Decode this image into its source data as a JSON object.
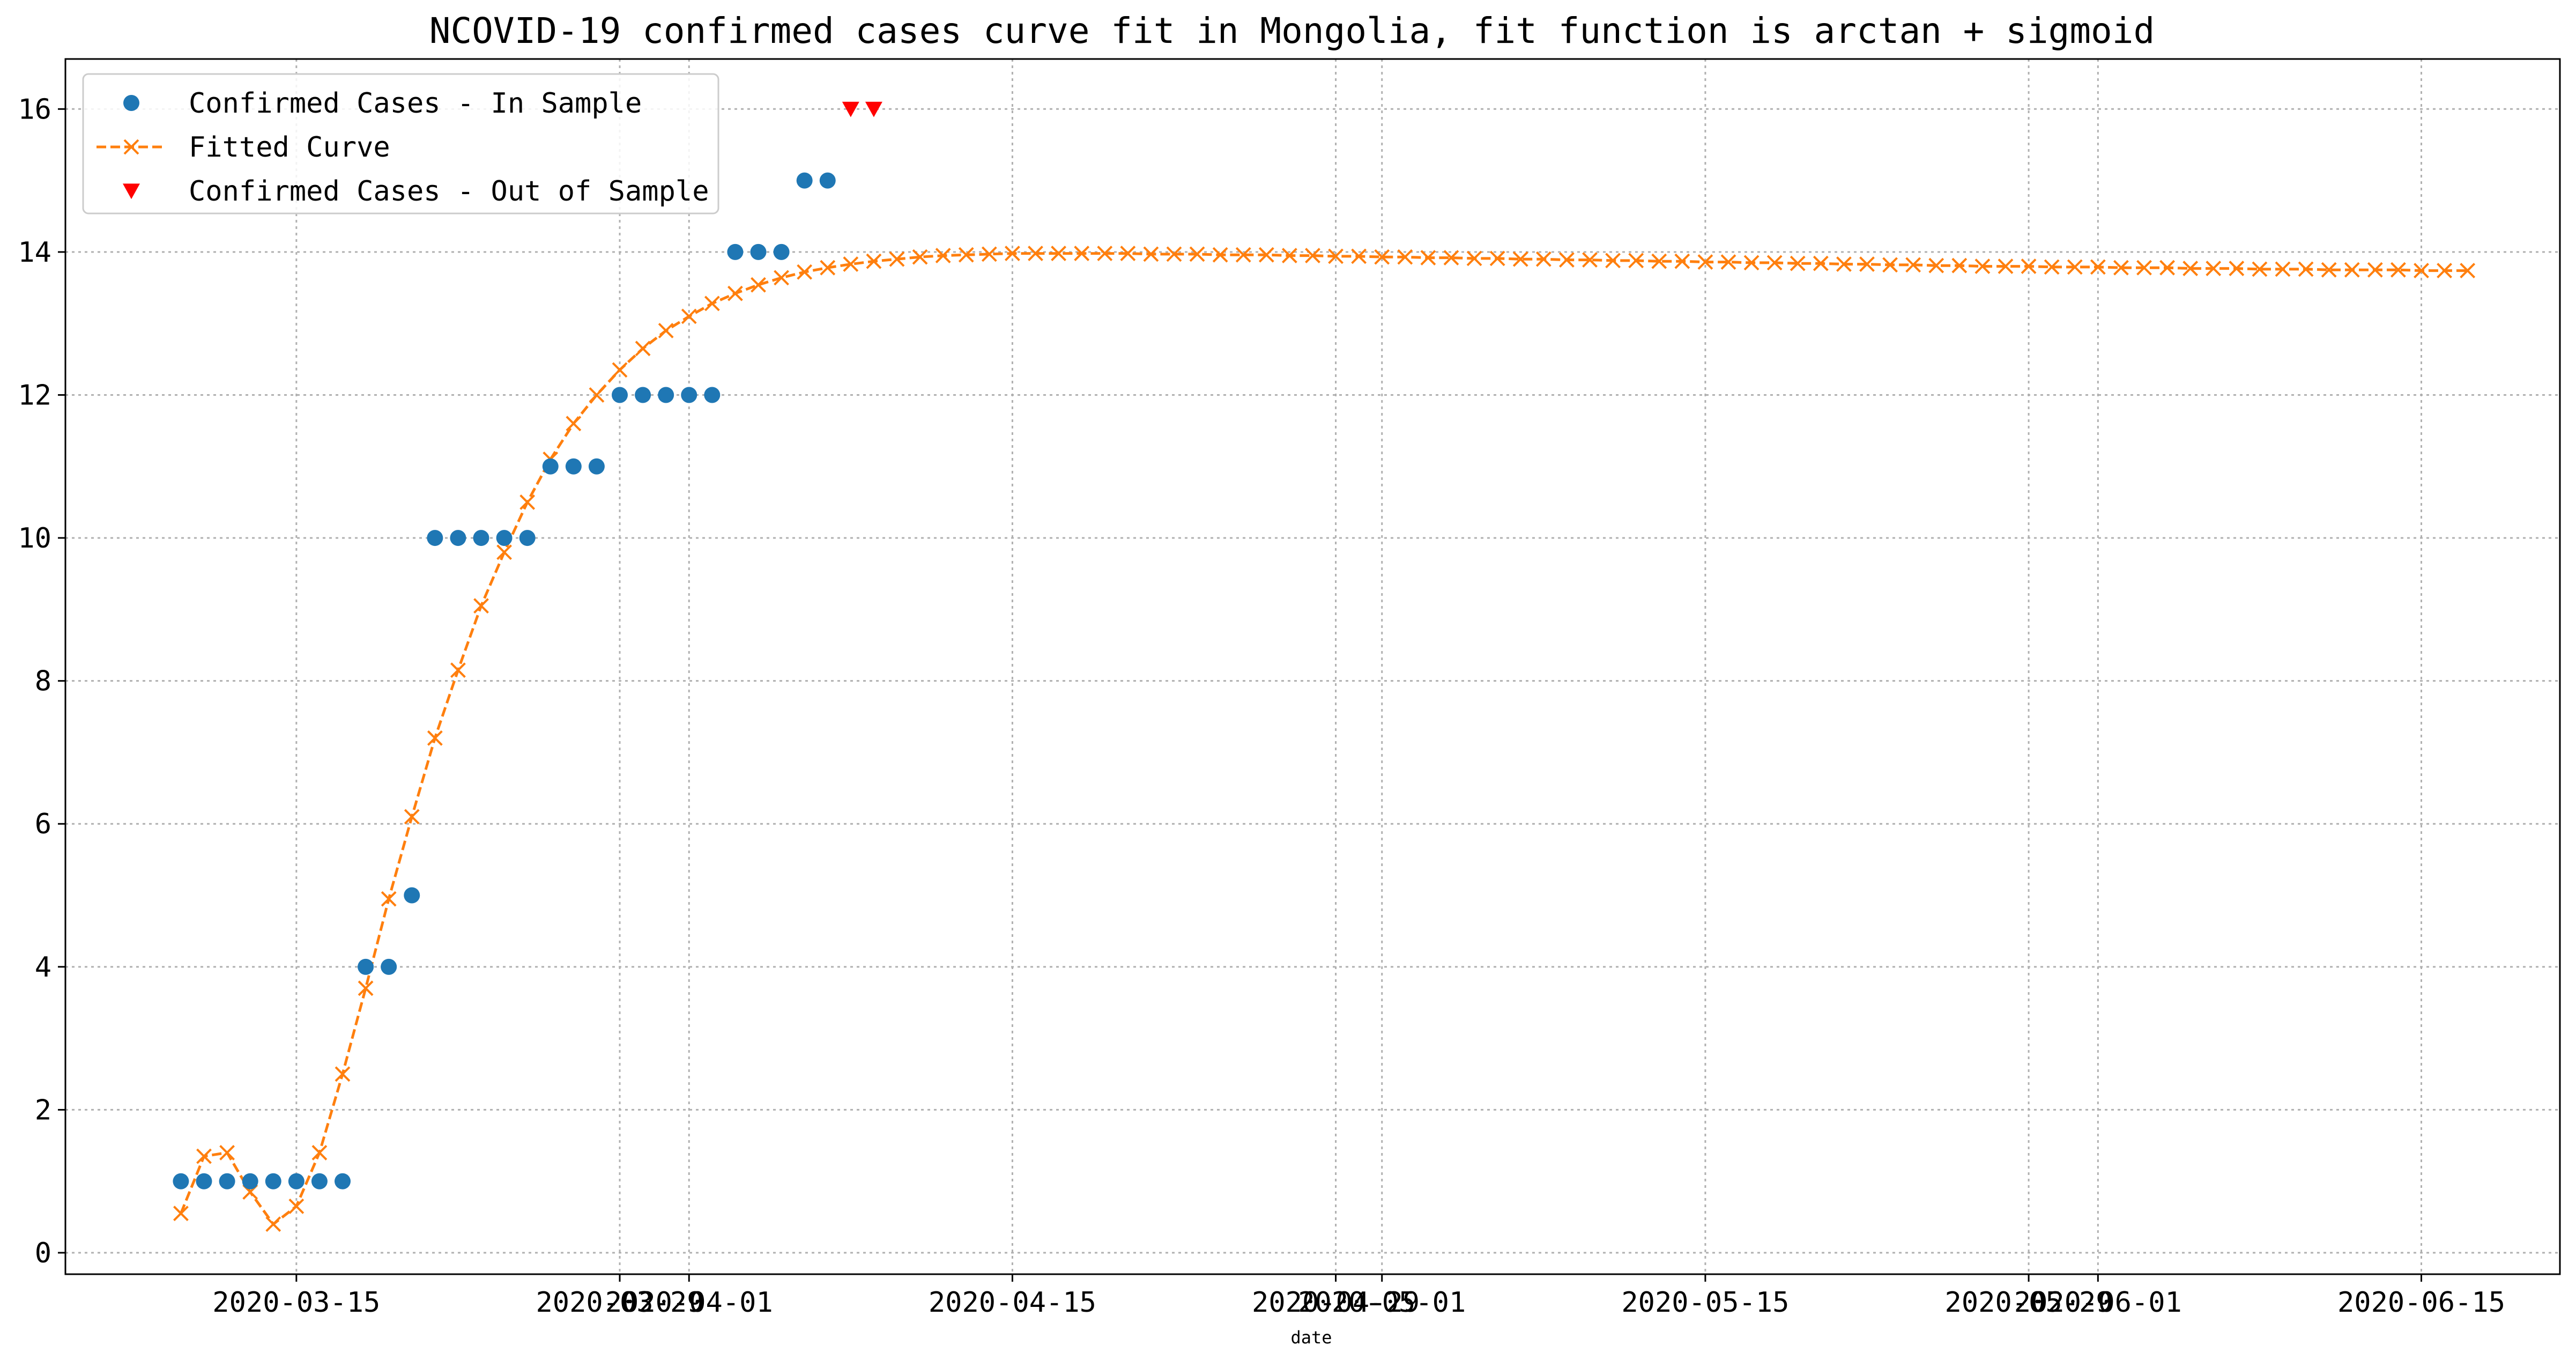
{
  "chart_data": {
    "type": "scatter",
    "title": "NCOVID-19 confirmed cases curve fit in Mongolia, fit function is arctan + sigmoid",
    "xlabel": "date",
    "ylabel": "",
    "x_type": "date",
    "xlim": [
      "2020-03-05",
      "2020-06-21"
    ],
    "ylim": [
      -0.3,
      16.7
    ],
    "grid": true,
    "legend_position": "upper-left",
    "x_ticks": [
      {
        "date": "2020-03-15",
        "label": "2020-03-15"
      },
      {
        "date": "2020-03-29",
        "label": "2020-03-29"
      },
      {
        "date": "2020-04-01",
        "label": "2020-04-01"
      },
      {
        "date": "2020-04-15",
        "label": "2020-04-15"
      },
      {
        "date": "2020-04-29",
        "label": "2020-04-29"
      },
      {
        "date": "2020-05-01",
        "label": "2020-05-01"
      },
      {
        "date": "2020-05-15",
        "label": "2020-05-15"
      },
      {
        "date": "2020-05-29",
        "label": "2020-05-29"
      },
      {
        "date": "2020-06-01",
        "label": "2020-06-01"
      },
      {
        "date": "2020-06-15",
        "label": "2020-06-15"
      }
    ],
    "y_ticks": [
      0,
      2,
      4,
      6,
      8,
      10,
      12,
      14,
      16
    ],
    "series": [
      {
        "name": "Confirmed Cases - In Sample",
        "type": "scatter",
        "color": "#1f77b4",
        "marker": "circle",
        "points": [
          {
            "x": "2020-03-10",
            "y": 1
          },
          {
            "x": "2020-03-11",
            "y": 1
          },
          {
            "x": "2020-03-12",
            "y": 1
          },
          {
            "x": "2020-03-13",
            "y": 1
          },
          {
            "x": "2020-03-14",
            "y": 1
          },
          {
            "x": "2020-03-15",
            "y": 1
          },
          {
            "x": "2020-03-16",
            "y": 1
          },
          {
            "x": "2020-03-17",
            "y": 1
          },
          {
            "x": "2020-03-18",
            "y": 4
          },
          {
            "x": "2020-03-19",
            "y": 4
          },
          {
            "x": "2020-03-20",
            "y": 5
          },
          {
            "x": "2020-03-21",
            "y": 10
          },
          {
            "x": "2020-03-22",
            "y": 10
          },
          {
            "x": "2020-03-23",
            "y": 10
          },
          {
            "x": "2020-03-24",
            "y": 10
          },
          {
            "x": "2020-03-25",
            "y": 10
          },
          {
            "x": "2020-03-26",
            "y": 11
          },
          {
            "x": "2020-03-27",
            "y": 11
          },
          {
            "x": "2020-03-28",
            "y": 11
          },
          {
            "x": "2020-03-29",
            "y": 12
          },
          {
            "x": "2020-03-30",
            "y": 12
          },
          {
            "x": "2020-03-31",
            "y": 12
          },
          {
            "x": "2020-04-01",
            "y": 12
          },
          {
            "x": "2020-04-02",
            "y": 12
          },
          {
            "x": "2020-04-03",
            "y": 14
          },
          {
            "x": "2020-04-04",
            "y": 14
          },
          {
            "x": "2020-04-05",
            "y": 14
          },
          {
            "x": "2020-04-06",
            "y": 15
          },
          {
            "x": "2020-04-07",
            "y": 15
          }
        ]
      },
      {
        "name": "Fitted Curve",
        "type": "line",
        "color": "#ff7f0e",
        "marker": "x",
        "line_style": "dashed",
        "start_date": "2020-03-10",
        "step_days": 1,
        "values": [
          0.55,
          1.35,
          1.4,
          0.85,
          0.4,
          0.65,
          1.4,
          2.5,
          3.7,
          4.95,
          6.1,
          7.2,
          8.15,
          9.05,
          9.8,
          10.5,
          11.1,
          11.6,
          12.0,
          12.35,
          12.65,
          12.9,
          13.1,
          13.28,
          13.42,
          13.54,
          13.64,
          13.72,
          13.78,
          13.83,
          13.87,
          13.9,
          13.93,
          13.95,
          13.96,
          13.97,
          13.98,
          13.98,
          13.98,
          13.98,
          13.98,
          13.98,
          13.97,
          13.97,
          13.97,
          13.96,
          13.96,
          13.96,
          13.95,
          13.95,
          13.94,
          13.94,
          13.93,
          13.93,
          13.92,
          13.92,
          13.91,
          13.91,
          13.9,
          13.9,
          13.89,
          13.89,
          13.88,
          13.88,
          13.87,
          13.87,
          13.86,
          13.86,
          13.85,
          13.85,
          13.84,
          13.84,
          13.83,
          13.83,
          13.82,
          13.82,
          13.81,
          13.81,
          13.8,
          13.8,
          13.8,
          13.79,
          13.79,
          13.79,
          13.78,
          13.78,
          13.78,
          13.77,
          13.77,
          13.77,
          13.76,
          13.76,
          13.76,
          13.75,
          13.75,
          13.75,
          13.75,
          13.74,
          13.74,
          13.74
        ]
      },
      {
        "name": "Confirmed Cases - Out of Sample",
        "type": "scatter",
        "color": "#ff0000",
        "marker": "triangle-down",
        "points": [
          {
            "x": "2020-04-08",
            "y": 16
          },
          {
            "x": "2020-04-09",
            "y": 16
          }
        ]
      }
    ]
  }
}
